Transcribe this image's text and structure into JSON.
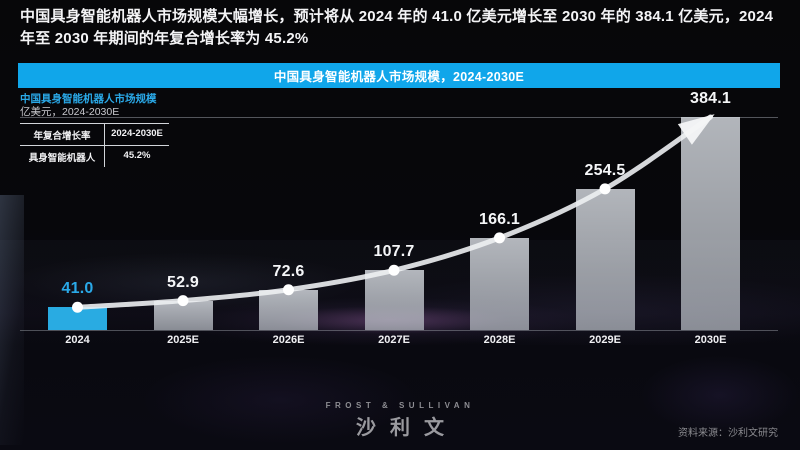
{
  "page": {
    "title": "中国具身智能机器人市场规模大幅增长，预计将从 2024 年的 41.0 亿美元增长至 2030 年的 384.1 亿美元，2024 年至 2030 年期间的年复合增长率为 45.2%",
    "source_note": "资料来源：沙利文研究"
  },
  "banner": {
    "title": "中国具身智能机器人市场规模，2024-2030E",
    "color": "#10a6ea"
  },
  "chart_header": {
    "title": "中国具身智能机器人市场规模",
    "unit": "亿美元，2024-2030E"
  },
  "cagr_table": {
    "header": [
      "年复合增长率",
      "2024-2030E"
    ],
    "rows": [
      [
        "具身智能机器人",
        "45.2%"
      ]
    ]
  },
  "footer_logo": {
    "line1": "FROST & SULLIVAN",
    "line2": "沙利文"
  },
  "chart_data": {
    "type": "bar",
    "categories": [
      "2024",
      "2025E",
      "2026E",
      "2027E",
      "2028E",
      "2029E",
      "2030E"
    ],
    "values": [
      41.0,
      52.9,
      72.6,
      107.7,
      166.1,
      254.5,
      384.1
    ],
    "title": "中国具身智能机器人市场规模",
    "xlabel": "",
    "ylabel": "亿美元",
    "ylim": [
      0,
      384.1
    ],
    "grid": false,
    "legend": "none",
    "highlight_category": "2024",
    "highlight_color": "#29abe2",
    "bar_color": "rgba(200,205,212,0.78)",
    "trend_line": "smooth curve through bar tops ending in arrow at 2030E",
    "cagr": "45.2%"
  }
}
